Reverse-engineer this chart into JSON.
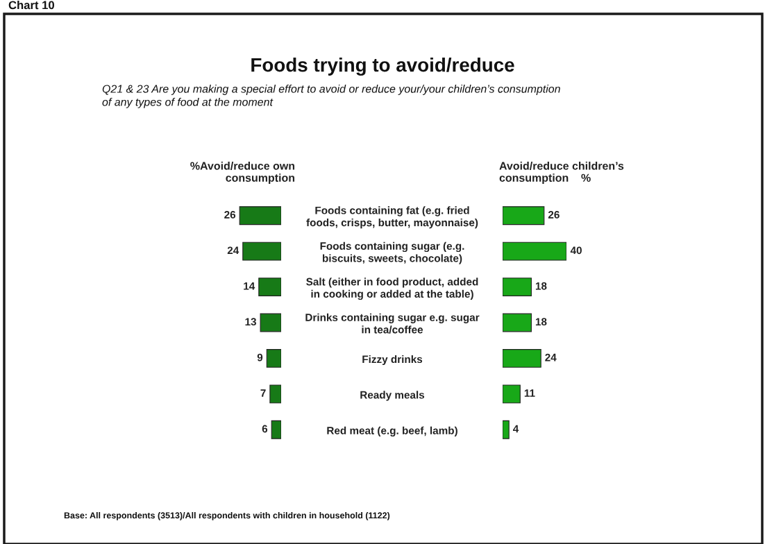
{
  "chart_data": [
    {
      "type": "bar",
      "orientation": "horizontal",
      "title": "%Avoid/reduce own\nconsumption",
      "categories": [
        "Foods containing fat (e.g. fried\nfoods, crisps, butter, mayonnaise)",
        "Foods containing sugar (e.g.\nbiscuits, sweets, chocolate)",
        "Salt (either in food product, added\nin cooking or added at the table)",
        "Drinks containing sugar e.g. sugar\nin tea/coffee",
        "Fizzy drinks",
        "Ready meals",
        "Red meat (e.g. beef, lamb)"
      ],
      "values": [
        26,
        24,
        14,
        13,
        9,
        7,
        6
      ],
      "color": "#177a17",
      "data_labels": true,
      "annotations": [
        "Chart 10",
        "Foods trying to avoid/reduce",
        "Q21 & 23 Are you making a special effort to avoid or reduce your/your children’s consumption\nof any types of food at the moment",
        "Base: All respondents (3513)/All respondents with children in household (1122)"
      ]
    },
    {
      "type": "bar",
      "orientation": "horizontal",
      "title": "Avoid/reduce children’s\nconsumption    %",
      "categories": [
        null,
        null,
        null,
        null,
        null,
        null,
        null
      ],
      "values": [
        26,
        40,
        18,
        18,
        24,
        11,
        4
      ],
      "color": "#18a818",
      "data_labels": true
    }
  ]
}
